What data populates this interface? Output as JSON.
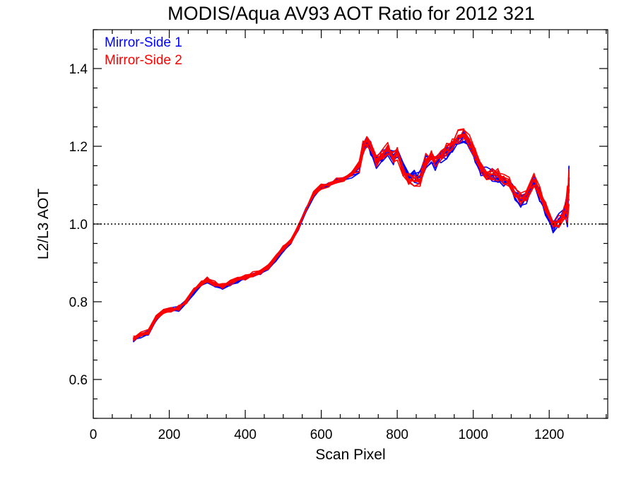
{
  "chart_data": {
    "type": "line",
    "title": "MODIS/Aqua AV93 AOT Ratio for 2012 321",
    "xlabel": "Scan Pixel",
    "ylabel": "L2/L3 AOT",
    "xlim": [
      0,
      1354
    ],
    "ylim": [
      0.5,
      1.5
    ],
    "x_ticks": [
      0,
      200,
      400,
      600,
      800,
      1000,
      1200
    ],
    "y_ticks": [
      0.6,
      0.8,
      1.0,
      1.2,
      1.4
    ],
    "x_tick_labels": [
      "0",
      "200",
      "400",
      "600",
      "800",
      "1000",
      "1200"
    ],
    "y_tick_labels": [
      "0.6",
      "0.8",
      "1.0",
      "1.2",
      "1.4"
    ],
    "x_minor_step": 50,
    "y_minor_step": 0.05,
    "reference_line": {
      "y": 1.0,
      "style": "dotted",
      "color": "#000000"
    },
    "legend": {
      "placement": "top-left"
    },
    "x": [
      105,
      125,
      145,
      165,
      185,
      205,
      225,
      245,
      265,
      285,
      300,
      320,
      340,
      360,
      380,
      400,
      420,
      440,
      460,
      480,
      500,
      520,
      540,
      560,
      580,
      600,
      620,
      640,
      660,
      680,
      700,
      710,
      720,
      730,
      745,
      760,
      775,
      790,
      800,
      815,
      830,
      845,
      860,
      875,
      890,
      900,
      915,
      930,
      945,
      960,
      975,
      990,
      1005,
      1020,
      1035,
      1050,
      1065,
      1080,
      1095,
      1110,
      1125,
      1140,
      1160,
      1175,
      1190,
      1210,
      1225,
      1240,
      1248,
      1252
    ],
    "series": [
      {
        "name": "Mirror-Side 1",
        "color": "#0000ff",
        "values": [
          0.7,
          0.712,
          0.72,
          0.755,
          0.775,
          0.778,
          0.782,
          0.8,
          0.825,
          0.845,
          0.855,
          0.845,
          0.838,
          0.847,
          0.855,
          0.862,
          0.87,
          0.875,
          0.888,
          0.91,
          0.935,
          0.955,
          0.99,
          1.035,
          1.075,
          1.095,
          1.1,
          1.11,
          1.115,
          1.125,
          1.145,
          1.195,
          1.21,
          1.195,
          1.16,
          1.175,
          1.19,
          1.17,
          1.185,
          1.145,
          1.125,
          1.125,
          1.12,
          1.16,
          1.175,
          1.155,
          1.175,
          1.185,
          1.2,
          1.22,
          1.225,
          1.21,
          1.175,
          1.14,
          1.13,
          1.125,
          1.125,
          1.115,
          1.1,
          1.075,
          1.06,
          1.07,
          1.11,
          1.075,
          1.04,
          0.995,
          1.01,
          1.035,
          1.05,
          1.12
        ]
      },
      {
        "name": "Mirror-Side 2",
        "color": "#ff0000",
        "values": [
          0.705,
          0.718,
          0.722,
          0.758,
          0.777,
          0.779,
          0.784,
          0.802,
          0.828,
          0.848,
          0.857,
          0.847,
          0.84,
          0.849,
          0.856,
          0.863,
          0.871,
          0.876,
          0.889,
          0.912,
          0.937,
          0.957,
          0.992,
          1.037,
          1.077,
          1.096,
          1.102,
          1.112,
          1.116,
          1.127,
          1.148,
          1.198,
          1.215,
          1.2,
          1.165,
          1.18,
          1.192,
          1.172,
          1.182,
          1.135,
          1.115,
          1.11,
          1.11,
          1.165,
          1.18,
          1.16,
          1.178,
          1.19,
          1.205,
          1.225,
          1.23,
          1.215,
          1.18,
          1.145,
          1.13,
          1.128,
          1.125,
          1.12,
          1.105,
          1.08,
          1.065,
          1.075,
          1.115,
          1.08,
          1.045,
          1.0,
          1.005,
          1.03,
          1.05,
          1.09
        ]
      }
    ]
  }
}
